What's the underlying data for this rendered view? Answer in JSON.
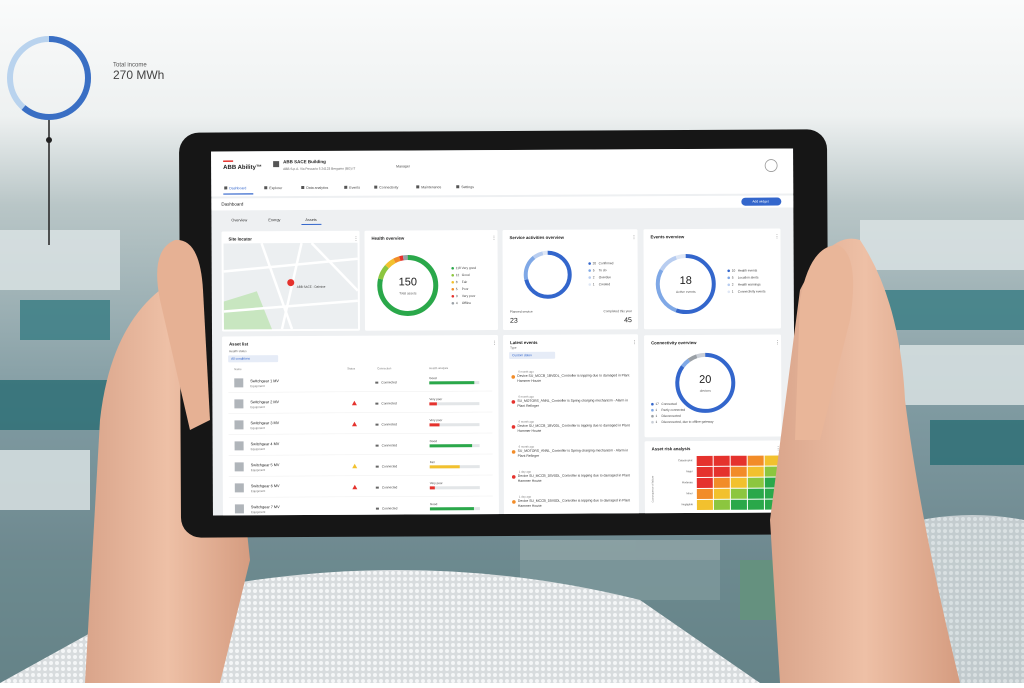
{
  "overlay": {
    "label": "Total income",
    "value": "270 MWh"
  },
  "app": {
    "brand": "ABB Ability™",
    "site": "ABB SACE Building",
    "address": "ABB S.p.A. Via Pescaria 5 24123 Bergamo (BG) IT",
    "user": "Manager",
    "nav": [
      "Dashboard",
      "Explorer",
      "Data analytics",
      "Events",
      "Connectivity",
      "Maintenance",
      "Settings"
    ],
    "page_title": "Dashboard",
    "tabs": [
      "Overview",
      "Energy",
      "Assets"
    ],
    "button": "Add widget"
  },
  "site_locator": {
    "title": "Site locator",
    "pin": "ABB SACE - Dalmine"
  },
  "health": {
    "title": "Health overview",
    "total": 150,
    "total_label": "Total assets",
    "items": [
      {
        "count": 118,
        "label": "Very good",
        "color": "#2aa84a"
      },
      {
        "count": 12,
        "label": "Good",
        "color": "#8cc63f"
      },
      {
        "count": 8,
        "label": "Fair",
        "color": "#f2c12e"
      },
      {
        "count": 5,
        "label": "Poor",
        "color": "#f28c28"
      },
      {
        "count": 3,
        "label": "Very poor",
        "color": "#e5322d"
      },
      {
        "count": 4,
        "label": "Offline",
        "color": "#9aa0a6"
      }
    ]
  },
  "service": {
    "title": "Service activities overview",
    "items": [
      {
        "count": 20,
        "label": "Confirmed",
        "color": "#3366cc"
      },
      {
        "count": 5,
        "label": "To do",
        "color": "#7fa8e6"
      },
      {
        "count": 2,
        "label": "Overdue",
        "color": "#b8cdf0"
      },
      {
        "count": 1,
        "label": "Created",
        "color": "#dfe7f5"
      }
    ],
    "planned_label": "Planned service",
    "planned": 23,
    "completed_label": "Completed this year",
    "completed": 45
  },
  "events": {
    "title": "Events overview",
    "total": 18,
    "total_label": "Active events",
    "items": [
      {
        "count": 10,
        "label": "Health events",
        "color": "#3366cc"
      },
      {
        "count": 5,
        "label": "Location alerts",
        "color": "#7fa8e6"
      },
      {
        "count": 2,
        "label": "Health warnings",
        "color": "#b8cdf0"
      },
      {
        "count": 1,
        "label": "Connectivity events",
        "color": "#dfe7f5"
      }
    ]
  },
  "connectivity": {
    "title": "Connectivity overview",
    "total": 20,
    "total_label": "devices",
    "items": [
      {
        "count": 17,
        "label": "Connected",
        "color": "#3366cc"
      },
      {
        "count": 1,
        "label": "Partly connected",
        "color": "#7fa8e6"
      },
      {
        "count": 1,
        "label": "Disconnected",
        "color": "#9aa0a6"
      },
      {
        "count": 1,
        "label": "Disconnected, due to offline gateway",
        "color": "#c9ced6"
      }
    ]
  },
  "asset_list": {
    "title": "Asset list",
    "filter_label": "Health status",
    "filter": "All conditions",
    "columns": [
      "Name",
      "Status",
      "Connection",
      "Health analysis"
    ],
    "rows": [
      {
        "name": "Switchgear 1 MV",
        "type": "Equipment",
        "connection": "Connected",
        "health": "Good",
        "score": 90,
        "color": "#2aa84a",
        "alert": false
      },
      {
        "name": "Switchgear 2 MV",
        "type": "Equipment",
        "connection": "Connected",
        "health": "Very poor",
        "score": 15,
        "color": "#e5322d",
        "alert": true
      },
      {
        "name": "Switchgear 3 MV",
        "type": "Equipment",
        "connection": "Connected",
        "health": "Very poor",
        "score": 20,
        "color": "#e5322d",
        "alert": true
      },
      {
        "name": "Switchgear 4 MV",
        "type": "Equipment",
        "connection": "Connected",
        "health": "Good",
        "score": 85,
        "color": "#2aa84a",
        "alert": false
      },
      {
        "name": "Switchgear 5 MV",
        "type": "Equipment",
        "connection": "Connected",
        "health": "Fair",
        "score": 60,
        "color": "#f2c12e",
        "alert": true
      },
      {
        "name": "Switchgear 6 MV",
        "type": "Equipment",
        "connection": "Connected",
        "health": "Very poor",
        "score": 10,
        "color": "#e5322d",
        "alert": true
      },
      {
        "name": "Switchgear 7 MV",
        "type": "Equipment",
        "connection": "Connected",
        "health": "Good",
        "score": 88,
        "color": "#2aa84a",
        "alert": false
      }
    ]
  },
  "latest_events": {
    "title": "Latest events",
    "filter_label": "Type",
    "filter": "Custom dates",
    "items": [
      {
        "time": "6 month ago",
        "text": "Device SU_MCCB_1BV0DL_Controller is tripping due to damaged in Plant Hammer House",
        "color": "#f28c28"
      },
      {
        "time": "6 month ago",
        "text": "SU_MOTORS_ANNL_Controller is Spring charging mechanism - Alarm in Plant Refinger",
        "color": "#e5322d"
      },
      {
        "time": "6 month ago",
        "text": "Device SU_MCCB_1BV0DL_Controller is tripping due to damaged in Plant Hammer House",
        "color": "#e5322d"
      },
      {
        "time": "6 month ago",
        "text": "SU_MOTORS_ANNL_Controller is Spring charging mechanism - Alarm in Plant Refinger",
        "color": "#f28c28"
      },
      {
        "time": "1 day ago",
        "text": "Device SU_MCCB_1BV0DL_Controller is tripping due to damaged in Plant Hammer House",
        "color": "#e5322d"
      },
      {
        "time": "1 day ago",
        "text": "Device SU_MCCB_1BV0DL_Controller is tripping due to damaged in Plant Hammer House",
        "color": "#f28c28"
      }
    ]
  },
  "risk": {
    "title": "Asset risk analysis",
    "axis_label": "Consequence of failure",
    "rows": [
      "Catastrophic",
      "Major",
      "Moderate",
      "Minor",
      "Negligible"
    ]
  }
}
